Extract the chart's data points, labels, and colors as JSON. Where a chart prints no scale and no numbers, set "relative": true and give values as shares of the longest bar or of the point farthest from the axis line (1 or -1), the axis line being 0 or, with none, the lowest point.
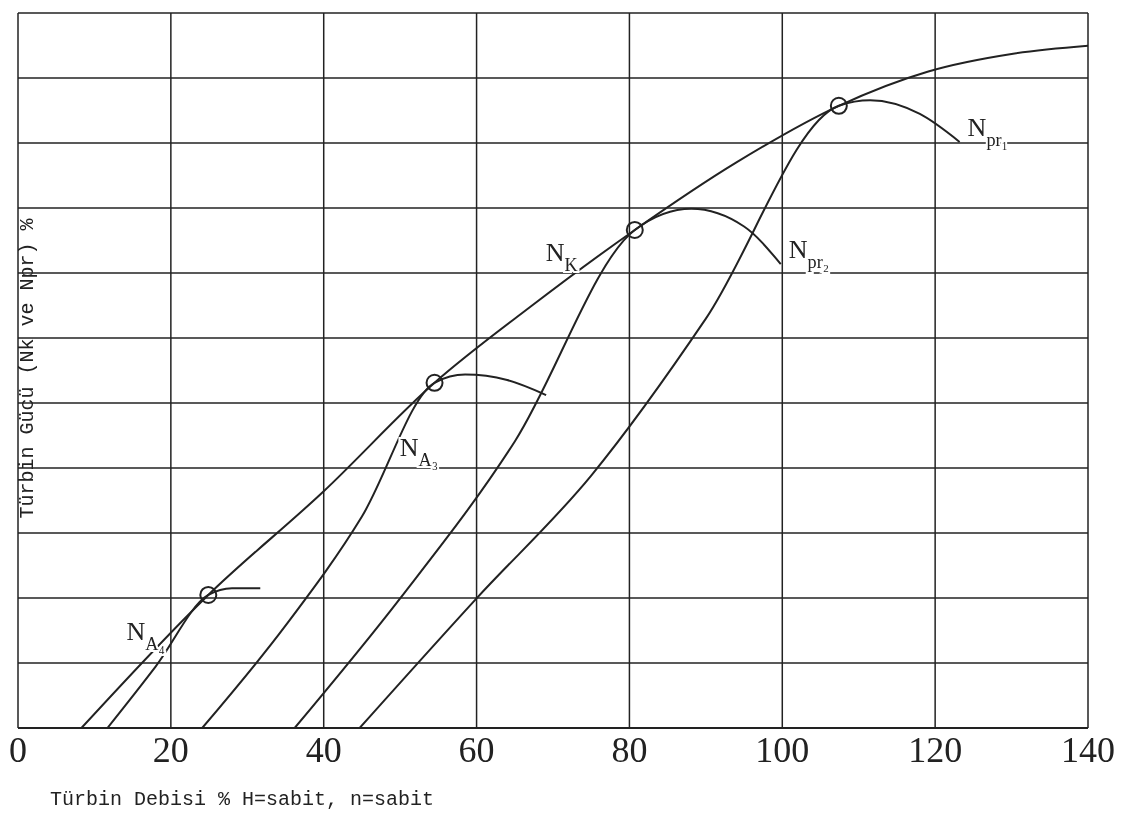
{
  "chart_data": {
    "type": "line",
    "xlabel": "Türbin Debisi % H=sabit, n=sabit",
    "ylabel": "Türbin Gücü (Nk ve Npr) %",
    "relative": true,
    "xlim": [
      0,
      140
    ],
    "xticks": [
      0,
      20,
      40,
      60,
      80,
      100,
      120,
      140
    ],
    "grid": true,
    "legend": false,
    "marker": "none",
    "line_style": "solid",
    "series": [
      {
        "color": "#222222",
        "x": [
          8.3,
          24.9,
          40,
          54.5,
          67,
          80.7,
          94,
          107.4,
          119,
          130,
          140
        ],
        "values": [
          0,
          0.195,
          0.347,
          0.506,
          0.617,
          0.73,
          0.829,
          0.912,
          0.962,
          0.988,
          1
        ]
      },
      {
        "color": "#222222",
        "x": [
          11.7,
          18,
          24.9,
          28,
          31.7
        ],
        "values": [
          0,
          0.09,
          0.195,
          0.205,
          0.205
        ]
      },
      {
        "color": "#222222",
        "x": [
          24.1,
          35,
          45,
          54.5,
          58.5,
          64,
          69.1
        ],
        "values": [
          0,
          0.15,
          0.31,
          0.506,
          0.518,
          0.51,
          0.488
        ]
      },
      {
        "color": "#222222",
        "x": [
          36.2,
          50,
          65,
          80.7,
          88.1,
          95,
          99.8
        ],
        "values": [
          0,
          0.19,
          0.42,
          0.73,
          0.761,
          0.735,
          0.68
        ]
      },
      {
        "color": "#222222",
        "x": [
          44.7,
          60,
          75,
          90,
          107.4,
          111.5,
          118,
          123.2
        ],
        "values": [
          0,
          0.19,
          0.37,
          0.6,
          0.912,
          0.92,
          0.9,
          0.859
        ]
      },
      {
        "type": "scatter",
        "color": "#222222",
        "marker": "circle",
        "x": [
          24.9,
          54.5,
          80.7,
          107.4
        ],
        "values": [
          0.195,
          0.506,
          0.73,
          0.912
        ]
      }
    ],
    "annotations": [
      {
        "text": "N$_{K}$",
        "x": 74,
        "y": 0.675
      },
      {
        "text": "N$_{A₃}$",
        "x": 48.9,
        "y": 0.39
      },
      {
        "text": "N$_{A₄}$",
        "x": 20,
        "y": 0.12
      },
      {
        "text": "N$_{pr₁}$",
        "x": 123.2,
        "y": 0.859
      },
      {
        "text": "N$_{pr₂}$",
        "x": 99.8,
        "y": 0.68
      }
    ]
  }
}
